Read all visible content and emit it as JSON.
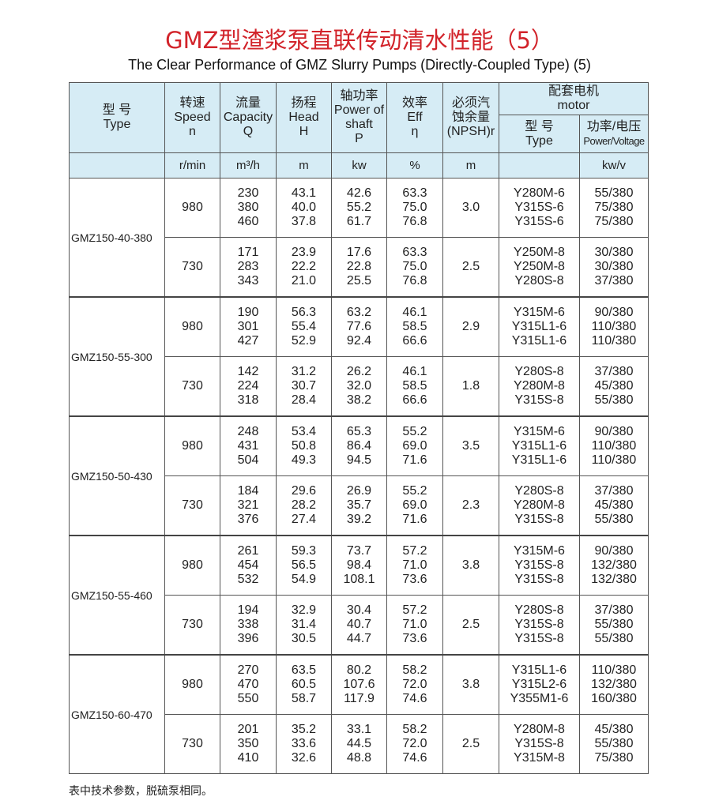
{
  "title": "GMZ型渣浆泵直联传动清水性能（5）",
  "subtitle": "The Clear Performance of GMZ Slurry Pumps (Directly-Coupled Type) (5)",
  "colors": {
    "title": "#d2232a",
    "header_bg": "#d6ecf5"
  },
  "headers": {
    "type": [
      "型 号",
      "Type"
    ],
    "speed": [
      "转速",
      "Speed",
      "n"
    ],
    "capacity": [
      "流量",
      "Capacity",
      "Q"
    ],
    "head": [
      "扬程",
      "Head",
      "H"
    ],
    "power": [
      "轴功率",
      "Power of",
      "shaft",
      "P"
    ],
    "eff": [
      "效率",
      "Eff",
      "η"
    ],
    "npsh": [
      "必须汽",
      "蚀余量",
      "(NPSH)r"
    ],
    "motor": [
      "配套电机",
      "motor"
    ],
    "motor_type": [
      "型 号",
      "Type"
    ],
    "motor_pv": [
      "功率/电压",
      "Power/Voltage"
    ]
  },
  "units": {
    "speed": "r/min",
    "capacity": "m³/h",
    "head": "m",
    "power": "kw",
    "eff": "%",
    "npsh": "m",
    "motor_type": "",
    "motor_pv": "kw/v"
  },
  "groups": [
    {
      "type": "GMZ150-40-380",
      "rows": [
        {
          "n": "980",
          "Q": [
            "230",
            "380",
            "460"
          ],
          "H": [
            "43.1",
            "40.0",
            "37.8"
          ],
          "P": [
            "42.6",
            "55.2",
            "61.7"
          ],
          "eff": [
            "63.3",
            "75.0",
            "76.8"
          ],
          "npsh": "3.0",
          "motor": [
            "Y280M-6",
            "Y315S-6",
            "Y315S-6"
          ],
          "pv": [
            "55/380",
            "75/380",
            "75/380"
          ]
        },
        {
          "n": "730",
          "Q": [
            "171",
            "283",
            "343"
          ],
          "H": [
            "23.9",
            "22.2",
            "21.0"
          ],
          "P": [
            "17.6",
            "22.8",
            "25.5"
          ],
          "eff": [
            "63.3",
            "75.0",
            "76.8"
          ],
          "npsh": "2.5",
          "motor": [
            "Y250M-8",
            "Y250M-8",
            "Y280S-8"
          ],
          "pv": [
            "30/380",
            "30/380",
            "37/380"
          ]
        }
      ]
    },
    {
      "type": "GMZ150-55-300",
      "rows": [
        {
          "n": "980",
          "Q": [
            "190",
            "301",
            "427"
          ],
          "H": [
            "56.3",
            "55.4",
            "52.9"
          ],
          "P": [
            "63.2",
            "77.6",
            "92.4"
          ],
          "eff": [
            "46.1",
            "58.5",
            "66.6"
          ],
          "npsh": "2.9",
          "motor": [
            "Y315M-6",
            "Y315L1-6",
            "Y315L1-6"
          ],
          "pv": [
            "90/380",
            "110/380",
            "110/380"
          ]
        },
        {
          "n": "730",
          "Q": [
            "142",
            "224",
            "318"
          ],
          "H": [
            "31.2",
            "30.7",
            "28.4"
          ],
          "P": [
            "26.2",
            "32.0",
            "38.2"
          ],
          "eff": [
            "46.1",
            "58.5",
            "66.6"
          ],
          "npsh": "1.8",
          "motor": [
            "Y280S-8",
            "Y280M-8",
            "Y315S-8"
          ],
          "pv": [
            "37/380",
            "45/380",
            "55/380"
          ]
        }
      ]
    },
    {
      "type": "GMZ150-50-430",
      "rows": [
        {
          "n": "980",
          "Q": [
            "248",
            "431",
            "504"
          ],
          "H": [
            "53.4",
            "50.8",
            "49.3"
          ],
          "P": [
            "65.3",
            "86.4",
            "94.5"
          ],
          "eff": [
            "55.2",
            "69.0",
            "71.6"
          ],
          "npsh": "3.5",
          "motor": [
            "Y315M-6",
            "Y315L1-6",
            "Y315L1-6"
          ],
          "pv": [
            "90/380",
            "110/380",
            "110/380"
          ]
        },
        {
          "n": "730",
          "Q": [
            "184",
            "321",
            "376"
          ],
          "H": [
            "29.6",
            "28.2",
            "27.4"
          ],
          "P": [
            "26.9",
            "35.7",
            "39.2"
          ],
          "eff": [
            "55.2",
            "69.0",
            "71.6"
          ],
          "npsh": "2.3",
          "motor": [
            "Y280S-8",
            "Y280M-8",
            "Y315S-8"
          ],
          "pv": [
            "37/380",
            "45/380",
            "55/380"
          ]
        }
      ]
    },
    {
      "type": "GMZ150-55-460",
      "rows": [
        {
          "n": "980",
          "Q": [
            "261",
            "454",
            "532"
          ],
          "H": [
            "59.3",
            "56.5",
            "54.9"
          ],
          "P": [
            "73.7",
            "98.4",
            "108.1"
          ],
          "eff": [
            "57.2",
            "71.0",
            "73.6"
          ],
          "npsh": "3.8",
          "motor": [
            "Y315M-6",
            "Y315S-8",
            "Y315S-8"
          ],
          "pv": [
            "90/380",
            "132/380",
            "132/380"
          ]
        },
        {
          "n": "730",
          "Q": [
            "194",
            "338",
            "396"
          ],
          "H": [
            "32.9",
            "31.4",
            "30.5"
          ],
          "P": [
            "30.4",
            "40.7",
            "44.7"
          ],
          "eff": [
            "57.2",
            "71.0",
            "73.6"
          ],
          "npsh": "2.5",
          "motor": [
            "Y280S-8",
            "Y315S-8",
            "Y315S-8"
          ],
          "pv": [
            "37/380",
            "55/380",
            "55/380"
          ]
        }
      ]
    },
    {
      "type": "GMZ150-60-470",
      "rows": [
        {
          "n": "980",
          "Q": [
            "270",
            "470",
            "550"
          ],
          "H": [
            "63.5",
            "60.5",
            "58.7"
          ],
          "P": [
            "80.2",
            "107.6",
            "117.9"
          ],
          "eff": [
            "58.2",
            "72.0",
            "74.6"
          ],
          "npsh": "3.8",
          "motor": [
            "Y315L1-6",
            "Y315L2-6",
            "Y355M1-6"
          ],
          "pv": [
            "110/380",
            "132/380",
            "160/380"
          ]
        },
        {
          "n": "730",
          "Q": [
            "201",
            "350",
            "410"
          ],
          "H": [
            "35.2",
            "33.6",
            "32.6"
          ],
          "P": [
            "33.1",
            "44.5",
            "48.8"
          ],
          "eff": [
            "58.2",
            "72.0",
            "74.6"
          ],
          "npsh": "2.5",
          "motor": [
            "Y280M-8",
            "Y315S-8",
            "Y315M-8"
          ],
          "pv": [
            "45/380",
            "55/380",
            "75/380"
          ]
        }
      ]
    }
  ],
  "footer": "表中技术参数，脱硫泵相同。"
}
